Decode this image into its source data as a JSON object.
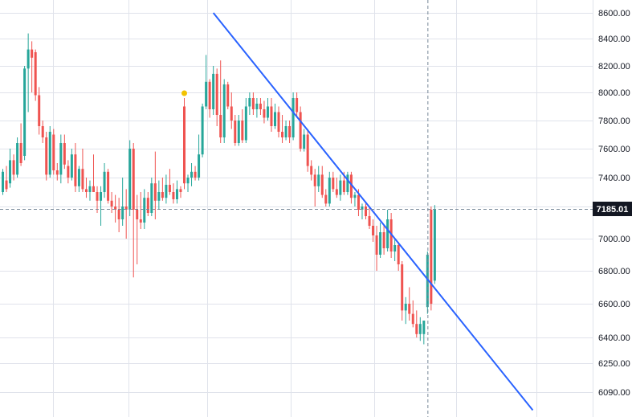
{
  "chart_data": {
    "type": "candlestick",
    "title": "",
    "xlabel": "",
    "ylabel": "",
    "grid": true,
    "y_axis_position": "right",
    "y_ticks": [
      "8600.00",
      "8400.00",
      "8200.00",
      "8000.00",
      "7800.00",
      "7600.00",
      "7400.00",
      "7200.00",
      "7000.00",
      "6800.00",
      "6600.00",
      "6400.00",
      "6250.00",
      "6090.00"
    ],
    "last_price_label": "7185.01",
    "colors": {
      "up": "#26a69a",
      "down": "#ef5350",
      "trendline": "#2962ff",
      "marker": "#f2c200",
      "grid": "#e0e3eb",
      "crosshair": "#758696",
      "label_bg": "#131722"
    },
    "marker": {
      "index": 50,
      "price": 7960
    },
    "trendline": {
      "from": {
        "index": 58,
        "price": 8600
      },
      "to": {
        "index": 146,
        "price": 5990
      }
    },
    "crosshair": {
      "index": 117,
      "price": 7185.01
    },
    "candles": [
      {
        "o": 7300,
        "h": 7460,
        "l": 7280,
        "c": 7440
      },
      {
        "o": 7380,
        "h": 7480,
        "l": 7300,
        "c": 7320
      },
      {
        "o": 7360,
        "h": 7600,
        "l": 7330,
        "c": 7520
      },
      {
        "o": 7520,
        "h": 7560,
        "l": 7380,
        "c": 7420
      },
      {
        "o": 7420,
        "h": 7680,
        "l": 7400,
        "c": 7640
      },
      {
        "o": 7640,
        "h": 7780,
        "l": 7480,
        "c": 7500
      },
      {
        "o": 7550,
        "h": 8200,
        "l": 7520,
        "c": 8180
      },
      {
        "o": 8180,
        "h": 8440,
        "l": 7860,
        "c": 8320
      },
      {
        "o": 8320,
        "h": 8380,
        "l": 8000,
        "c": 8260
      },
      {
        "o": 8300,
        "h": 8320,
        "l": 7940,
        "c": 7980
      },
      {
        "o": 7980,
        "h": 8040,
        "l": 7700,
        "c": 7760
      },
      {
        "o": 7760,
        "h": 7800,
        "l": 7640,
        "c": 7680
      },
      {
        "o": 7680,
        "h": 7720,
        "l": 7380,
        "c": 7420
      },
      {
        "o": 7420,
        "h": 7760,
        "l": 7400,
        "c": 7720
      },
      {
        "o": 7700,
        "h": 7740,
        "l": 7420,
        "c": 7450
      },
      {
        "o": 7450,
        "h": 7500,
        "l": 7380,
        "c": 7420
      },
      {
        "o": 7420,
        "h": 7700,
        "l": 7360,
        "c": 7640
      },
      {
        "o": 7640,
        "h": 7700,
        "l": 7460,
        "c": 7490
      },
      {
        "o": 7480,
        "h": 7520,
        "l": 7360,
        "c": 7400
      },
      {
        "o": 7400,
        "h": 7600,
        "l": 7380,
        "c": 7560
      },
      {
        "o": 7560,
        "h": 7640,
        "l": 7300,
        "c": 7340
      },
      {
        "o": 7340,
        "h": 7480,
        "l": 7300,
        "c": 7460
      },
      {
        "o": 7460,
        "h": 7600,
        "l": 7300,
        "c": 7320
      },
      {
        "o": 7320,
        "h": 7400,
        "l": 7260,
        "c": 7300
      },
      {
        "o": 7300,
        "h": 7380,
        "l": 7240,
        "c": 7340
      },
      {
        "o": 7340,
        "h": 7560,
        "l": 7300,
        "c": 7300
      },
      {
        "o": 7300,
        "h": 7340,
        "l": 7160,
        "c": 7240
      },
      {
        "o": 7240,
        "h": 7340,
        "l": 7080,
        "c": 7300
      },
      {
        "o": 7300,
        "h": 7500,
        "l": 7260,
        "c": 7440
      },
      {
        "o": 7440,
        "h": 7460,
        "l": 7220,
        "c": 7240
      },
      {
        "o": 7240,
        "h": 7300,
        "l": 7160,
        "c": 7200
      },
      {
        "o": 7200,
        "h": 7280,
        "l": 7100,
        "c": 7180
      },
      {
        "o": 7180,
        "h": 7260,
        "l": 7040,
        "c": 7120
      },
      {
        "o": 7120,
        "h": 7400,
        "l": 7080,
        "c": 7200
      },
      {
        "o": 7200,
        "h": 7320,
        "l": 7000,
        "c": 7180
      },
      {
        "o": 7180,
        "h": 7660,
        "l": 7140,
        "c": 7600
      },
      {
        "o": 7600,
        "h": 7640,
        "l": 6760,
        "c": 7180
      },
      {
        "o": 7180,
        "h": 7280,
        "l": 6840,
        "c": 7120
      },
      {
        "o": 7120,
        "h": 7300,
        "l": 7060,
        "c": 7100
      },
      {
        "o": 7100,
        "h": 7320,
        "l": 7060,
        "c": 7260
      },
      {
        "o": 7260,
        "h": 7300,
        "l": 7140,
        "c": 7160
      },
      {
        "o": 7160,
        "h": 7400,
        "l": 7140,
        "c": 7360
      },
      {
        "o": 7360,
        "h": 7580,
        "l": 7120,
        "c": 7240
      },
      {
        "o": 7240,
        "h": 7380,
        "l": 7180,
        "c": 7300
      },
      {
        "o": 7300,
        "h": 7400,
        "l": 7240,
        "c": 7260
      },
      {
        "o": 7260,
        "h": 7420,
        "l": 7220,
        "c": 7350
      },
      {
        "o": 7350,
        "h": 7460,
        "l": 7280,
        "c": 7300
      },
      {
        "o": 7300,
        "h": 7360,
        "l": 7220,
        "c": 7250
      },
      {
        "o": 7250,
        "h": 7380,
        "l": 7220,
        "c": 7320
      },
      {
        "o": 7320,
        "h": 7340,
        "l": 7260,
        "c": 7300
      },
      {
        "o": 7900,
        "h": 7960,
        "l": 7320,
        "c": 7360
      },
      {
        "o": 7360,
        "h": 7420,
        "l": 7300,
        "c": 7400
      },
      {
        "o": 7400,
        "h": 7500,
        "l": 7340,
        "c": 7440
      },
      {
        "o": 7440,
        "h": 7480,
        "l": 7380,
        "c": 7400
      },
      {
        "o": 7400,
        "h": 7700,
        "l": 7380,
        "c": 7560
      },
      {
        "o": 7560,
        "h": 7920,
        "l": 7540,
        "c": 7900
      },
      {
        "o": 7900,
        "h": 8280,
        "l": 7880,
        "c": 8080
      },
      {
        "o": 8080,
        "h": 8100,
        "l": 7820,
        "c": 7880
      },
      {
        "o": 7880,
        "h": 8200,
        "l": 7840,
        "c": 8140
      },
      {
        "o": 8140,
        "h": 8180,
        "l": 7760,
        "c": 7840
      },
      {
        "o": 7840,
        "h": 8240,
        "l": 7640,
        "c": 7680
      },
      {
        "o": 7680,
        "h": 8100,
        "l": 7640,
        "c": 8060
      },
      {
        "o": 8060,
        "h": 8080,
        "l": 7880,
        "c": 7900
      },
      {
        "o": 7900,
        "h": 8000,
        "l": 7740,
        "c": 7800
      },
      {
        "o": 7800,
        "h": 7840,
        "l": 7620,
        "c": 7640
      },
      {
        "o": 7640,
        "h": 7840,
        "l": 7620,
        "c": 7800
      },
      {
        "o": 7800,
        "h": 7880,
        "l": 7640,
        "c": 7660
      },
      {
        "o": 7660,
        "h": 7960,
        "l": 7640,
        "c": 7900
      },
      {
        "o": 7900,
        "h": 8000,
        "l": 7840,
        "c": 7960
      },
      {
        "o": 7960,
        "h": 8000,
        "l": 7840,
        "c": 7880
      },
      {
        "o": 7880,
        "h": 7960,
        "l": 7820,
        "c": 7920
      },
      {
        "o": 7920,
        "h": 7960,
        "l": 7840,
        "c": 7880
      },
      {
        "o": 7880,
        "h": 7940,
        "l": 7780,
        "c": 7820
      },
      {
        "o": 7820,
        "h": 7960,
        "l": 7800,
        "c": 7900
      },
      {
        "o": 7900,
        "h": 7960,
        "l": 7720,
        "c": 7760
      },
      {
        "o": 7760,
        "h": 7920,
        "l": 7740,
        "c": 7860
      },
      {
        "o": 7860,
        "h": 7900,
        "l": 7680,
        "c": 7720
      },
      {
        "o": 7720,
        "h": 7840,
        "l": 7640,
        "c": 7680
      },
      {
        "o": 7680,
        "h": 7800,
        "l": 7660,
        "c": 7760
      },
      {
        "o": 7760,
        "h": 7800,
        "l": 7640,
        "c": 7680
      },
      {
        "o": 7680,
        "h": 8000,
        "l": 7660,
        "c": 7960
      },
      {
        "o": 7960,
        "h": 8000,
        "l": 7820,
        "c": 7860
      },
      {
        "o": 7860,
        "h": 7900,
        "l": 7580,
        "c": 7600
      },
      {
        "o": 7600,
        "h": 7740,
        "l": 7580,
        "c": 7700
      },
      {
        "o": 7700,
        "h": 7740,
        "l": 7440,
        "c": 7480
      },
      {
        "o": 7480,
        "h": 7520,
        "l": 7380,
        "c": 7420
      },
      {
        "o": 7420,
        "h": 7460,
        "l": 7200,
        "c": 7340
      },
      {
        "o": 7340,
        "h": 7480,
        "l": 7300,
        "c": 7420
      },
      {
        "o": 7420,
        "h": 7480,
        "l": 7260,
        "c": 7280
      },
      {
        "o": 7280,
        "h": 7320,
        "l": 7200,
        "c": 7220
      },
      {
        "o": 7220,
        "h": 7440,
        "l": 7200,
        "c": 7400
      },
      {
        "o": 7400,
        "h": 7440,
        "l": 7300,
        "c": 7320
      },
      {
        "o": 7320,
        "h": 7400,
        "l": 7260,
        "c": 7280
      },
      {
        "o": 7280,
        "h": 7420,
        "l": 7240,
        "c": 7380
      },
      {
        "o": 7380,
        "h": 7440,
        "l": 7280,
        "c": 7300
      },
      {
        "o": 7300,
        "h": 7440,
        "l": 7280,
        "c": 7420
      },
      {
        "o": 7420,
        "h": 7440,
        "l": 7220,
        "c": 7260
      },
      {
        "o": 7260,
        "h": 7300,
        "l": 7200,
        "c": 7280
      },
      {
        "o": 7280,
        "h": 7320,
        "l": 7140,
        "c": 7180
      },
      {
        "o": 7180,
        "h": 7220,
        "l": 7120,
        "c": 7200
      },
      {
        "o": 7200,
        "h": 7220,
        "l": 7120,
        "c": 7140
      },
      {
        "o": 7140,
        "h": 7200,
        "l": 7060,
        "c": 7080
      },
      {
        "o": 7080,
        "h": 7120,
        "l": 6980,
        "c": 7020
      },
      {
        "o": 7020,
        "h": 7080,
        "l": 6800,
        "c": 6900
      },
      {
        "o": 6900,
        "h": 7100,
        "l": 6880,
        "c": 7040
      },
      {
        "o": 7040,
        "h": 7080,
        "l": 6900,
        "c": 6940
      },
      {
        "o": 6940,
        "h": 7180,
        "l": 6920,
        "c": 7120
      },
      {
        "o": 7120,
        "h": 7160,
        "l": 6880,
        "c": 6920
      },
      {
        "o": 6920,
        "h": 7000,
        "l": 6860,
        "c": 6960
      },
      {
        "o": 6960,
        "h": 6980,
        "l": 6800,
        "c": 6840
      },
      {
        "o": 6840,
        "h": 6860,
        "l": 6500,
        "c": 6560
      },
      {
        "o": 6560,
        "h": 6640,
        "l": 6480,
        "c": 6600
      },
      {
        "o": 6600,
        "h": 6700,
        "l": 6500,
        "c": 6540
      },
      {
        "o": 6540,
        "h": 6620,
        "l": 6460,
        "c": 6480
      },
      {
        "o": 6480,
        "h": 6560,
        "l": 6400,
        "c": 6420
      },
      {
        "o": 6420,
        "h": 6520,
        "l": 6380,
        "c": 6480
      },
      {
        "o": 6420,
        "h": 6500,
        "l": 6360,
        "c": 6500
      },
      {
        "o": 6580,
        "h": 6920,
        "l": 6540,
        "c": 6900
      },
      {
        "o": 7180,
        "h": 7200,
        "l": 6560,
        "c": 6600
      },
      {
        "o": 6740,
        "h": 7210,
        "l": 6720,
        "c": 7185.01
      }
    ]
  }
}
